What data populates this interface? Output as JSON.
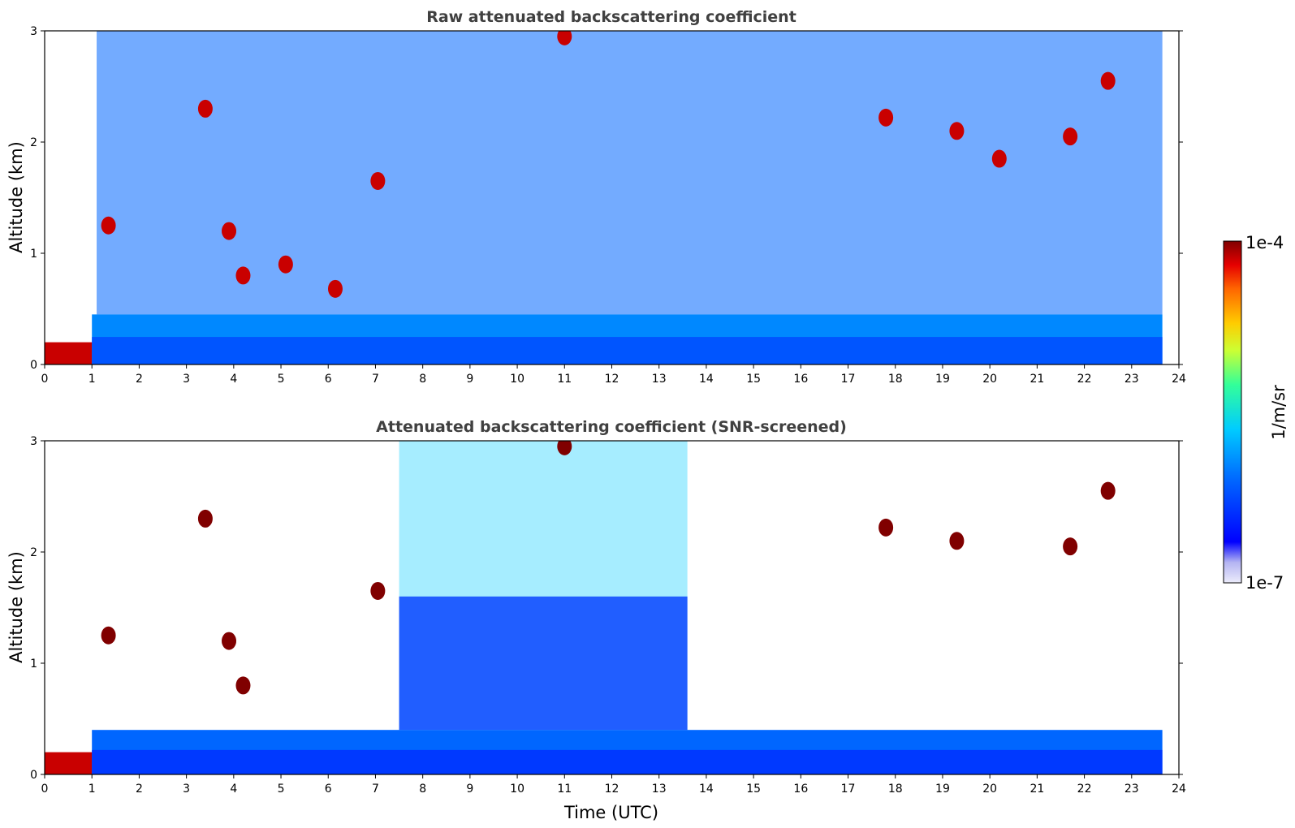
{
  "chart_data": [
    {
      "type": "heatmap",
      "title": "Raw attenuated backscattering coefficient",
      "xlabel": "",
      "ylabel": "Altitude (km)",
      "xlim": [
        0,
        24
      ],
      "ylim": [
        0,
        3
      ],
      "xticks": [
        "0",
        "1",
        "2",
        "3",
        "4",
        "5",
        "6",
        "7",
        "8",
        "9",
        "10",
        "11",
        "12",
        "13",
        "14",
        "15",
        "16",
        "17",
        "18",
        "19",
        "20",
        "21",
        "22",
        "23",
        "24"
      ],
      "yticks": [
        "0",
        "1",
        "2",
        "3"
      ],
      "data_end_time": 23.65,
      "features": [
        {
          "kind": "surface layer",
          "t0": 0.0,
          "t1": 1.6,
          "z0": 0.0,
          "z1": 0.2,
          "level": 0.95
        },
        {
          "kind": "boundary layer",
          "t0": 1.0,
          "t1": 23.65,
          "z_top": 0.45,
          "level": 0.35
        },
        {
          "kind": "cloud",
          "t": 1.35,
          "z": 1.25,
          "level": 0.95
        },
        {
          "kind": "cloud",
          "t": 3.4,
          "z": 2.3,
          "level": 0.95
        },
        {
          "kind": "cloud",
          "t": 3.9,
          "z": 1.2,
          "level": 0.95
        },
        {
          "kind": "cloud",
          "t": 4.2,
          "z": 0.8,
          "level": 0.95
        },
        {
          "kind": "cloud",
          "t": 5.1,
          "z": 0.9,
          "level": 0.95
        },
        {
          "kind": "cloud",
          "t": 6.15,
          "z": 0.68,
          "level": 0.95
        },
        {
          "kind": "cloud",
          "t": 7.05,
          "z": 1.65,
          "level": 0.95
        },
        {
          "kind": "cloud",
          "t": 11.0,
          "z": 2.95,
          "level": 0.95
        },
        {
          "kind": "cloud",
          "t": 17.8,
          "z": 2.22,
          "level": 0.95
        },
        {
          "kind": "cloud",
          "t": 19.3,
          "z": 2.1,
          "level": 0.95
        },
        {
          "kind": "cloud",
          "t": 20.2,
          "z": 1.85,
          "level": 0.95
        },
        {
          "kind": "cloud",
          "t": 21.7,
          "z": 2.05,
          "level": 0.95
        },
        {
          "kind": "cloud",
          "t": 22.5,
          "z": 2.55,
          "level": 0.95
        }
      ]
    },
    {
      "type": "heatmap",
      "title": "Attenuated backscattering coefficient (SNR-screened)",
      "xlabel": "Time (UTC)",
      "ylabel": "Altitude (km)",
      "xlim": [
        0,
        24
      ],
      "ylim": [
        0,
        3
      ],
      "xticks": [
        "0",
        "1",
        "2",
        "3",
        "4",
        "5",
        "6",
        "7",
        "8",
        "9",
        "10",
        "11",
        "12",
        "13",
        "14",
        "15",
        "16",
        "17",
        "18",
        "19",
        "20",
        "21",
        "22",
        "23",
        "24"
      ],
      "yticks": [
        "0",
        "1",
        "2",
        "3"
      ],
      "data_end_time": 23.65,
      "features": [
        {
          "kind": "surface layer",
          "t0": 0.0,
          "t1": 1.6,
          "z0": 0.0,
          "z1": 0.2,
          "level": 0.95
        },
        {
          "kind": "boundary layer",
          "t0": 1.0,
          "t1": 23.65,
          "z_top": 0.4,
          "level": 0.3
        },
        {
          "kind": "screened noise region",
          "t0": 7.5,
          "t1": 13.6,
          "z_top": 3.0,
          "level": 0.45
        },
        {
          "kind": "cloud",
          "t": 1.35,
          "z": 1.25,
          "level": 1.0
        },
        {
          "kind": "cloud",
          "t": 3.4,
          "z": 2.3,
          "level": 1.0
        },
        {
          "kind": "cloud",
          "t": 3.9,
          "z": 1.2,
          "level": 1.0
        },
        {
          "kind": "cloud",
          "t": 4.2,
          "z": 0.8,
          "level": 1.0
        },
        {
          "kind": "cloud",
          "t": 7.05,
          "z": 1.65,
          "level": 1.0
        },
        {
          "kind": "cloud",
          "t": 11.0,
          "z": 2.95,
          "level": 1.0
        },
        {
          "kind": "cloud",
          "t": 17.8,
          "z": 2.22,
          "level": 1.0
        },
        {
          "kind": "cloud",
          "t": 19.3,
          "z": 2.1,
          "level": 1.0
        },
        {
          "kind": "cloud",
          "t": 21.7,
          "z": 2.05,
          "level": 1.0
        },
        {
          "kind": "cloud",
          "t": 22.5,
          "z": 2.55,
          "level": 1.0
        }
      ]
    }
  ],
  "colorbar": {
    "max_label": "1e-4",
    "min_label": "1e-7",
    "unit_label": "1/m/sr",
    "scale": "log",
    "colors": [
      "#e6e6fa",
      "#b0b0f0",
      "#0000ff",
      "#0066ff",
      "#00ccff",
      "#33ff99",
      "#ccff33",
      "#ffcc00",
      "#ff6600",
      "#e60000",
      "#800000"
    ]
  }
}
